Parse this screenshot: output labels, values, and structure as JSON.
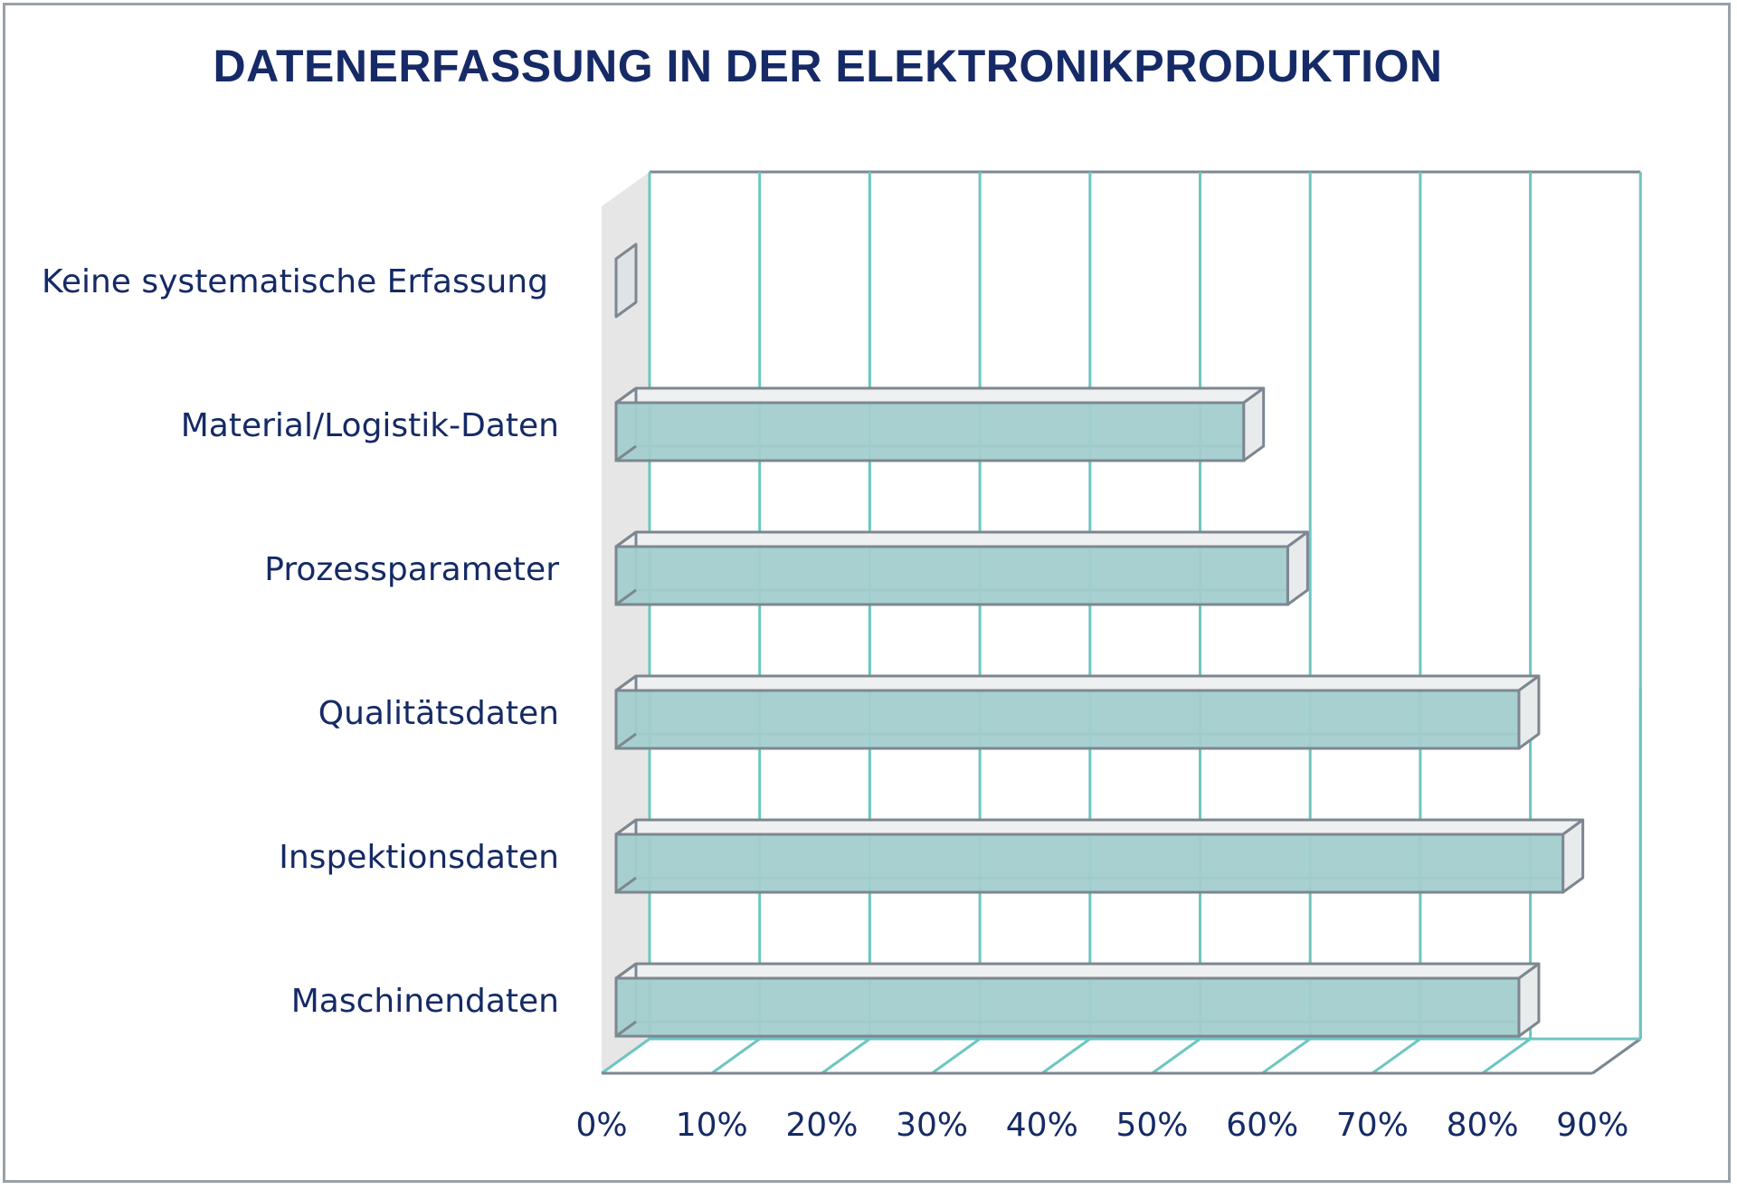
{
  "chart_data": {
    "type": "bar",
    "orientation": "horizontal",
    "title": "DATENERFASSUNG IN DER ELEKTRONIKPRODUKTION",
    "categories": [
      "Keine systematische Erfassung",
      "Material/Logistik-Daten",
      "Prozessparameter",
      "Qualitätsdaten",
      "Inspektionsdaten",
      "Maschinendaten"
    ],
    "values": [
      0,
      57,
      61,
      82,
      86,
      82
    ],
    "value_unit": "%",
    "xlim": [
      0,
      90
    ],
    "xticks": [
      "0%",
      "10%",
      "20%",
      "30%",
      "40%",
      "50%",
      "60%",
      "70%",
      "80%",
      "90%"
    ],
    "grid": true,
    "style": "3d",
    "colors": {
      "bar_fill": "#a3cdcd",
      "bar_edge": "#7d8791",
      "gridline": "#6cc6c0",
      "title": "#152a66",
      "label": "#152a66"
    }
  }
}
